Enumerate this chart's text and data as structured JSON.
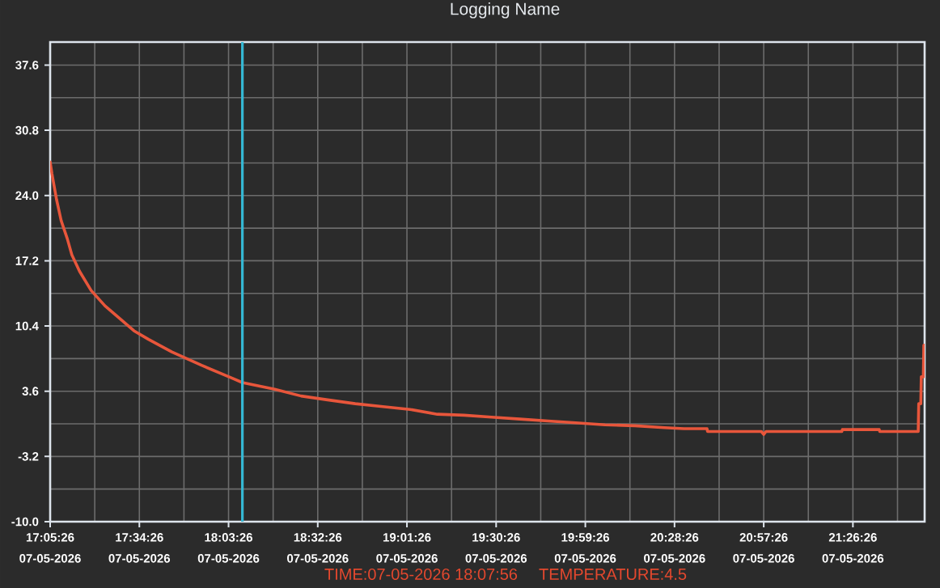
{
  "chart_data": {
    "type": "line",
    "title": "Logging Name",
    "x": [
      "2026-05-07T17:05:26",
      "2026-05-07T17:06:00",
      "2026-05-07T17:07:30",
      "2026-05-07T17:09:00",
      "2026-05-07T17:11:00",
      "2026-05-07T17:12:30",
      "2026-05-07T17:15:00",
      "2026-05-07T17:18:45",
      "2026-05-07T17:23:15",
      "2026-05-07T17:28:00",
      "2026-05-07T17:32:40",
      "2026-05-07T17:37:26",
      "2026-05-07T17:45:00",
      "2026-05-07T17:54:40",
      "2026-05-07T18:04:20",
      "2026-05-07T18:07:56",
      "2026-05-07T18:18:26",
      "2026-05-07T18:27:02",
      "2026-05-07T18:35:38",
      "2026-05-07T18:44:38",
      "2026-05-07T18:53:38",
      "2026-05-07T19:02:26",
      "2026-05-07T19:11:20",
      "2026-05-07T19:20:02",
      "2026-05-07T19:28:56",
      "2026-05-07T19:38:08",
      "2026-05-07T19:47:20",
      "2026-05-07T19:56:20",
      "2026-05-07T20:05:50",
      "2026-05-07T20:15:32",
      "2026-05-07T20:25:08",
      "2026-05-07T20:31:32",
      "2026-05-07T20:39:00",
      "2026-05-07T20:39:10",
      "2026-05-07T20:56:40",
      "2026-05-07T20:57:26",
      "2026-05-07T20:58:10",
      "2026-05-07T21:22:50",
      "2026-05-07T21:23:00",
      "2026-05-07T21:35:00",
      "2026-05-07T21:35:10",
      "2026-05-07T21:47:40",
      "2026-05-07T21:47:50",
      "2026-05-07T21:48:30",
      "2026-05-07T21:48:40",
      "2026-05-07T21:49:20",
      "2026-05-07T21:49:30",
      "2026-05-07T21:49:45"
    ],
    "series": [
      {
        "color": "#e8563b",
        "values": [
          27.5,
          26.3,
          23.6,
          21.4,
          19.5,
          17.8,
          16.1,
          14.1,
          12.5,
          11.2,
          9.9,
          9.0,
          7.7,
          6.3,
          5.0,
          4.5,
          3.8,
          3.1,
          2.7,
          2.3,
          2.0,
          1.7,
          1.2,
          1.1,
          0.9,
          0.7,
          0.5,
          0.3,
          0.1,
          0.0,
          -0.2,
          -0.3,
          -0.3,
          -0.6,
          -0.6,
          -0.9,
          -0.6,
          -0.6,
          -0.4,
          -0.4,
          -0.6,
          -0.6,
          2.3,
          2.3,
          5.1,
          5.1,
          8.4,
          8.4
        ]
      }
    ],
    "xlim": [
      "2026-05-07T17:05:26",
      "2026-05-07T21:49:45"
    ],
    "xticks": [
      {
        "value": "2026-05-07T17:05:26",
        "label": "17:05:26 07-05-2026"
      },
      {
        "value": "2026-05-07T17:34:26",
        "label": "17:34:26 07-05-2026"
      },
      {
        "value": "2026-05-07T18:03:26",
        "label": "18:03:26 07-05-2026"
      },
      {
        "value": "2026-05-07T18:32:26",
        "label": "18:32:26 07-05-2026"
      },
      {
        "value": "2026-05-07T19:01:26",
        "label": "19:01:26 07-05-2026"
      },
      {
        "value": "2026-05-07T19:30:26",
        "label": "19:30:26 07-05-2026"
      },
      {
        "value": "2026-05-07T19:59:26",
        "label": "19:59:26 07-05-2026"
      },
      {
        "value": "2026-05-07T20:28:26",
        "label": "20:28:26 07-05-2026"
      },
      {
        "value": "2026-05-07T20:57:26",
        "label": "20:57:26 07-05-2026"
      },
      {
        "value": "2026-05-07T21:26:26",
        "label": "21:26:26 07-05-2026"
      }
    ],
    "ylim": [
      -10,
      40
    ],
    "yticks": [
      {
        "value": -10,
        "label": "-10.0"
      },
      -3.2,
      3.6,
      10.4,
      17.2,
      {
        "value": 24,
        "label": "24.0"
      },
      30.8,
      37.6
    ],
    "grid": true,
    "ref_lines": [
      {
        "axis": "x",
        "value": "2026-05-07T18:07:56",
        "color": "#35b8d4"
      }
    ],
    "annotations": [
      "TIME:07-05-2026 18:07:56",
      "TEMPERATURE:4.5"
    ]
  }
}
